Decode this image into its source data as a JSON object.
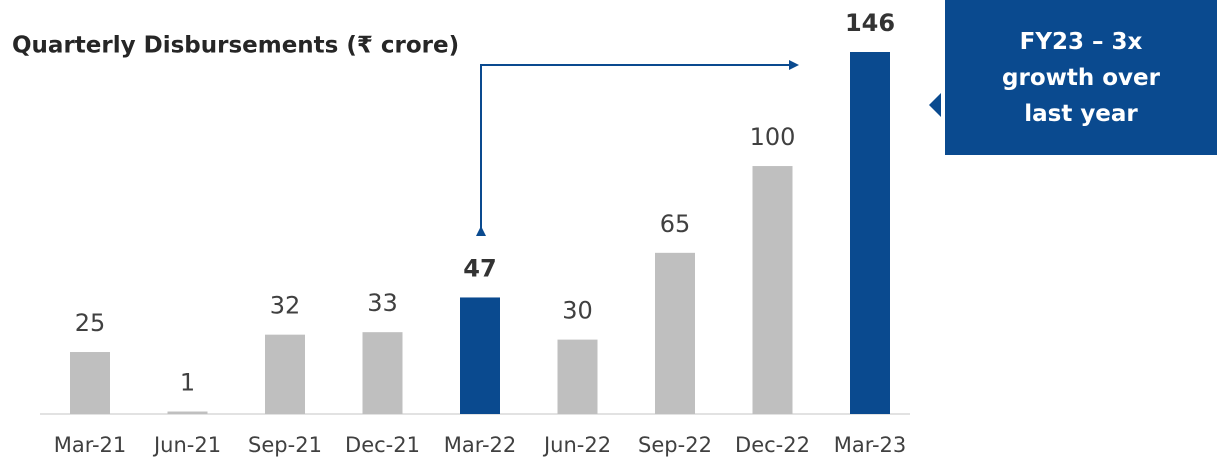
{
  "chart_data": {
    "type": "bar",
    "title": "Quarterly Disbursements (₹ crore)",
    "categories": [
      "Mar-21",
      "Jun-21",
      "Sep-21",
      "Dec-21",
      "Mar-22",
      "Jun-22",
      "Sep-22",
      "Dec-22",
      "Mar-23"
    ],
    "values": [
      25,
      1,
      32,
      33,
      47,
      30,
      65,
      100,
      146
    ],
    "color": "#bfbfbf",
    "highlight_color": "#0a4a8f",
    "colors": [
      "#bfbfbf",
      "#bfbfbf",
      "#bfbfbf",
      "#bfbfbf",
      "#0a4a8f",
      "#bfbfbf",
      "#bfbfbf",
      "#bfbfbf",
      "#0a4a8f"
    ],
    "annotation": "FY23 – 3x growth over last year"
  }
}
